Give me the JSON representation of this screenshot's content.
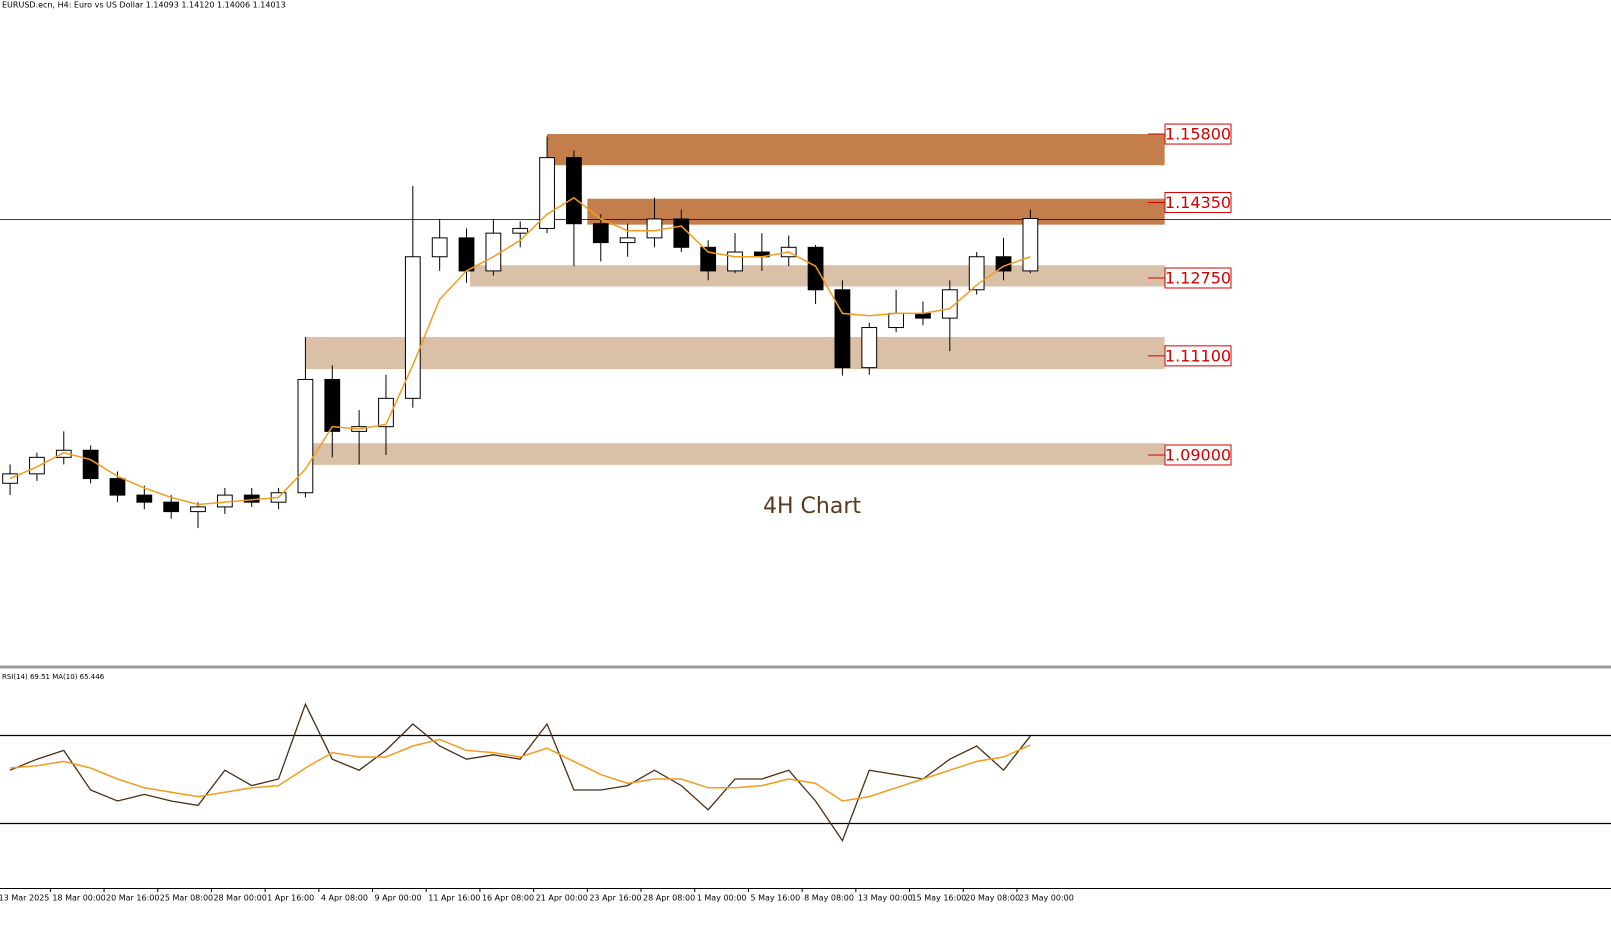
{
  "chart_data": [
    {
      "type": "candlestick",
      "title": "EURUSD.ecn, H4:  Euro vs US Dollar  1.14093 1.14120 1.14006 1.14013",
      "annotation": "4H Chart",
      "x": [
        0,
        8,
        16,
        24,
        32,
        40,
        48,
        56,
        64,
        72,
        80,
        88,
        96,
        104,
        112,
        120,
        128,
        136,
        144,
        152,
        160,
        168,
        176,
        184,
        192,
        200,
        208,
        216,
        224,
        232,
        240,
        248,
        256,
        264,
        272,
        280,
        288,
        296,
        304
      ],
      "open": [
        1.084,
        1.086,
        1.0895,
        1.091,
        1.085,
        1.0815,
        1.08,
        1.078,
        1.079,
        1.0815,
        1.08,
        1.082,
        1.106,
        1.095,
        1.096,
        1.102,
        1.132,
        1.136,
        1.129,
        1.137,
        1.138,
        1.153,
        1.139,
        1.135,
        1.136,
        1.14,
        1.134,
        1.129,
        1.133,
        1.132,
        1.134,
        1.125,
        1.1085,
        1.117,
        1.12,
        1.119,
        1.125,
        1.132,
        1.129
      ],
      "high": [
        1.088,
        1.0905,
        1.095,
        1.092,
        1.0865,
        1.0835,
        1.0815,
        1.08,
        1.083,
        1.083,
        1.083,
        1.115,
        1.109,
        1.0995,
        1.107,
        1.147,
        1.14,
        1.138,
        1.14,
        1.1395,
        1.1575,
        1.1545,
        1.141,
        1.139,
        1.1445,
        1.142,
        1.1355,
        1.137,
        1.137,
        1.1365,
        1.1345,
        1.127,
        1.118,
        1.125,
        1.1225,
        1.127,
        1.133,
        1.136,
        1.142
      ],
      "low": [
        1.0815,
        1.0845,
        1.088,
        1.084,
        1.08,
        1.0785,
        1.0765,
        1.0745,
        1.0775,
        1.079,
        1.0785,
        1.081,
        1.0895,
        1.088,
        1.09,
        1.1,
        1.129,
        1.1265,
        1.128,
        1.134,
        1.137,
        1.13,
        1.131,
        1.132,
        1.134,
        1.133,
        1.127,
        1.1285,
        1.129,
        1.13,
        1.122,
        1.1068,
        1.107,
        1.116,
        1.1175,
        1.112,
        1.124,
        1.127,
        1.1285
      ],
      "close": [
        1.086,
        1.0895,
        1.091,
        1.085,
        1.0815,
        1.08,
        1.078,
        1.079,
        1.0815,
        1.08,
        1.082,
        1.106,
        1.095,
        1.096,
        1.102,
        1.132,
        1.136,
        1.129,
        1.137,
        1.138,
        1.153,
        1.139,
        1.135,
        1.136,
        1.14,
        1.134,
        1.129,
        1.133,
        1.132,
        1.134,
        1.125,
        1.1085,
        1.117,
        1.12,
        1.119,
        1.125,
        1.132,
        1.129,
        1.1401
      ],
      "ma": {
        "color": "#f39c1f",
        "values": [
          1.085,
          1.0875,
          1.0905,
          1.089,
          1.0855,
          1.083,
          1.081,
          1.0795,
          1.08,
          1.0805,
          1.081,
          1.087,
          1.096,
          1.0955,
          1.0965,
          1.109,
          1.123,
          1.129,
          1.132,
          1.1355,
          1.141,
          1.1445,
          1.14,
          1.1375,
          1.1375,
          1.1385,
          1.133,
          1.132,
          1.132,
          1.133,
          1.13,
          1.12,
          1.1195,
          1.12,
          1.12,
          1.121,
          1.126,
          1.13,
          1.132
        ]
      },
      "color_up": "#ffffff",
      "color_down": "#000000",
      "candle_edge": "#000000",
      "price_line_color": "#000000",
      "ylim": [
        1.0455,
        1.1864
      ],
      "xlim": [
        -3,
        477
      ],
      "xticks": [
        {
          "value": -4,
          "label": "13 Mar 2025"
        },
        {
          "value": 12,
          "label": "18 Mar 00:00"
        },
        {
          "value": 28,
          "label": "20 Mar 16:00"
        },
        {
          "value": 44,
          "label": "25 Mar 08:00"
        },
        {
          "value": 60,
          "label": "28 Mar 00:00"
        },
        {
          "value": 76,
          "label": "1 Apr 16:00"
        },
        {
          "value": 92,
          "label": "4 Apr 08:00"
        },
        {
          "value": 108,
          "label": "9 Apr 00:00"
        },
        {
          "value": 124,
          "label": "11 Apr 16:00"
        },
        {
          "value": 140,
          "label": "16 Apr 08:00"
        },
        {
          "value": 156,
          "label": "21 Apr 00:00"
        },
        {
          "value": 172,
          "label": "23 Apr 16:00"
        },
        {
          "value": 188,
          "label": "28 Apr 08:00"
        },
        {
          "value": 204,
          "label": "1 May 00:00"
        },
        {
          "value": 220,
          "label": "5 May 16:00"
        },
        {
          "value": 236,
          "label": "8 May 08:00"
        },
        {
          "value": 252,
          "label": "13 May 00:00"
        },
        {
          "value": 268,
          "label": "15 May 16:00"
        },
        {
          "value": 284,
          "label": "20 May 08:00"
        },
        {
          "value": 300,
          "label": "23 May 00:00"
        }
      ],
      "zones": [
        {
          "level": {
            "value": 1.158,
            "label": "1.15800"
          },
          "range": [
            1.1514,
            1.158
          ],
          "start": 160,
          "end": 344,
          "color": "#c47e4c"
        },
        {
          "level": {
            "value": 1.1435,
            "label": "1.14350"
          },
          "range": [
            1.1388,
            1.1443
          ],
          "start": 172,
          "end": 344,
          "color": "#c47e4c"
        },
        {
          "level": {
            "value": 1.1275,
            "label": "1.12750"
          },
          "range": [
            1.1257,
            1.1302
          ],
          "start": 137,
          "end": 344,
          "color": "#d9c0a6"
        },
        {
          "level": {
            "value": 1.111,
            "label": "1.11100"
          },
          "range": [
            1.1082,
            1.115
          ],
          "start": 88,
          "end": 344,
          "color": "#d9c0a6"
        },
        {
          "level": {
            "value": 1.09,
            "label": "1.09000"
          },
          "range": [
            1.0879,
            1.0925
          ],
          "start": 86,
          "end": 344,
          "color": "#d9c0a6"
        }
      ],
      "label_color": "#d40000"
    },
    {
      "type": "line",
      "title": "RSI(14) 69.51 MA(10) 65.446",
      "series": [
        {
          "color": "#4a2e14",
          "values": [
            54,
            59,
            63,
            45,
            40,
            43,
            40,
            38,
            54,
            47,
            50,
            84,
            59,
            54,
            63,
            75,
            65,
            59,
            61,
            59,
            75,
            45,
            45,
            47,
            54,
            47,
            36,
            50,
            50,
            54,
            40,
            22,
            54,
            52,
            50,
            59,
            65,
            54,
            69.51
          ]
        },
        {
          "color": "#f39c1f",
          "values": [
            55,
            56,
            58,
            55,
            50,
            46,
            44,
            42,
            44,
            46,
            47,
            55,
            62,
            60,
            60,
            65,
            68,
            63,
            62,
            60,
            64,
            58,
            52,
            48,
            50,
            50,
            46,
            46,
            47,
            50,
            48,
            40,
            42,
            46,
            50,
            54,
            58,
            60,
            65.446
          ]
        }
      ],
      "levels": [
        70,
        30
      ],
      "ylim": [
        0,
        100
      ]
    }
  ]
}
